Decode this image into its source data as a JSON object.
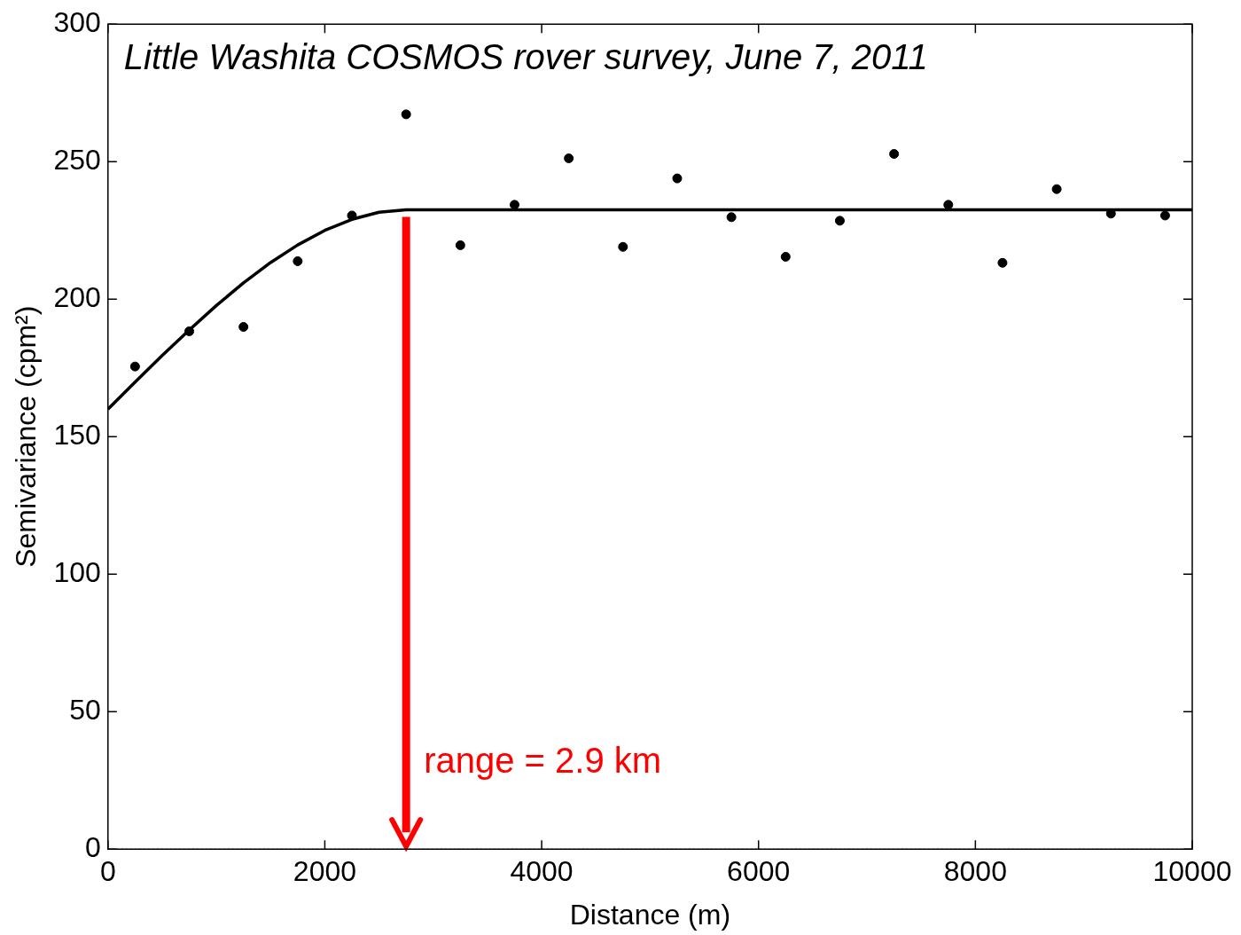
{
  "chart_data": {
    "type": "scatter",
    "title": "Little Washita COSMOS rover survey, June 7, 2011",
    "xlabel": "Distance (m)",
    "ylabel": "Semivariance (cpm²)",
    "xlim": [
      0,
      10000
    ],
    "xticks": [
      0,
      2000,
      4000,
      6000,
      8000,
      10000
    ],
    "ylim": [
      0,
      300
    ],
    "yticks": [
      0,
      50,
      100,
      150,
      200,
      250,
      300
    ],
    "grid": false,
    "legend": false,
    "series": [
      {
        "color": "#000000",
        "marker": "circle",
        "x": [
          250,
          750,
          1250,
          1750,
          2250,
          2750,
          3250,
          3750,
          4250,
          4750,
          5250,
          5750,
          6250,
          6750,
          7250,
          7750,
          8250,
          8750,
          9250,
          9750
        ],
        "values": [
          175.5,
          188.3,
          189.9,
          213.8,
          230.4,
          267.2,
          219.6,
          234.3,
          251.2,
          219,
          243.9,
          229.8,
          215.4,
          228.5,
          252.8,
          234.3,
          213.2,
          240,
          231.1,
          230.4
        ]
      },
      {
        "type": "line",
        "color": "#000000",
        "marker": "none",
        "line_style": "solid",
        "x": [
          0,
          250,
          500,
          750,
          1000,
          1250,
          1500,
          1750,
          2000,
          2250,
          2500,
          2750,
          10000
        ],
        "values": [
          160,
          169.8,
          179.5,
          188.8,
          197.7,
          205.9,
          213.3,
          219.7,
          225,
          229,
          231.6,
          232.5,
          232.5
        ]
      }
    ],
    "ref_lines": [
      {
        "axis": "y",
        "value": 0,
        "line_style": "dotted",
        "color": "#808080"
      },
      {
        "axis": "x",
        "value": 2750,
        "color": "#ff0000"
      }
    ],
    "annotations": [
      "range = 2.9 km"
    ]
  }
}
